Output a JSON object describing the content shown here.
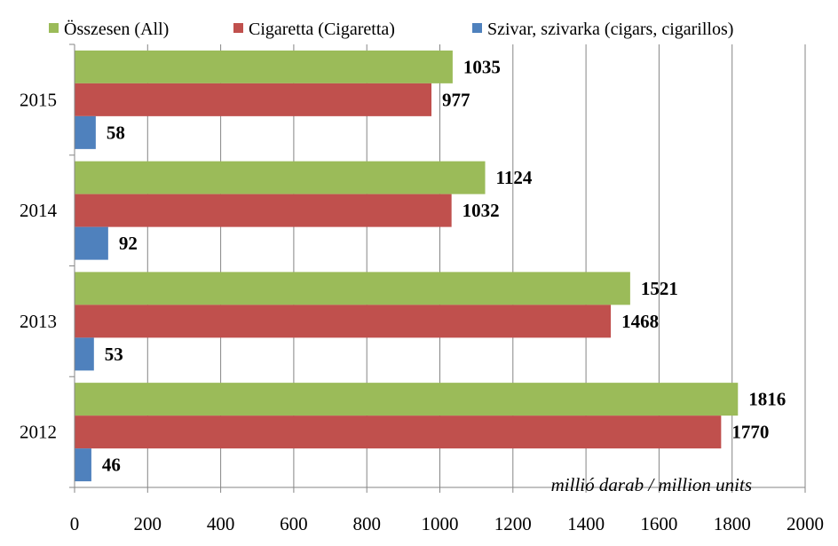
{
  "chart_data": {
    "type": "bar",
    "orientation": "horizontal",
    "categories": [
      "2015",
      "2014",
      "2013",
      "2012"
    ],
    "series": [
      {
        "name": "Összesen (All)",
        "color": "#9BBB59",
        "values": [
          1035,
          1124,
          1521,
          1816
        ]
      },
      {
        "name": "Cigaretta (Cigaretta)",
        "color": "#C0504D",
        "values": [
          977,
          1032,
          1468,
          1770
        ]
      },
      {
        "name": "Szivar, szivarka (cigars, cigarillos)",
        "color": "#4F81BD",
        "values": [
          58,
          92,
          53,
          46
        ]
      }
    ],
    "x_ticks": [
      "0",
      "200",
      "400",
      "600",
      "800",
      "1000",
      "1200",
      "1400",
      "1600",
      "1800",
      "2000"
    ],
    "xlim": [
      0,
      2000
    ],
    "unit_label": "millió darab / million units",
    "grid": true,
    "legend_position": "top"
  }
}
